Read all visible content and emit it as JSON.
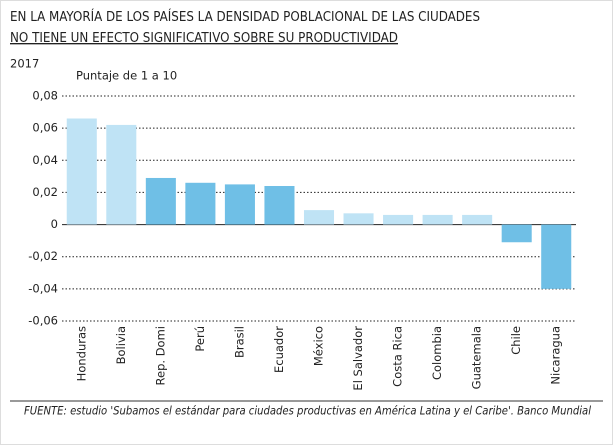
{
  "chart_data": {
    "type": "bar",
    "title": [
      "EN LA MAYORÍA DE LOS PAÍSES LA DENSIDAD POBLACIONAL DE LAS CIUDADES",
      "NO TIENE UN EFECTO SIGNIFICATIVO SOBRE SU PRODUCTIVIDAD"
    ],
    "subtitle": "2017",
    "y_label": "Puntaje de 1 a 10",
    "source": "FUENTE: estudio 'Subamos el estándar para ciudades productivas en América Latina y el Caribe'. Banco Mundial",
    "categories": [
      "Honduras",
      "Bolivia",
      "Rep. Domi",
      "Perú",
      "Brasil",
      "Ecuador",
      "México",
      "El Salvador",
      "Costa Rica",
      "Colombia",
      "Guatemala",
      "Chile",
      "Nicaragua"
    ],
    "values": [
      0.066,
      0.062,
      0.029,
      0.026,
      0.025,
      0.024,
      0.009,
      0.007,
      0.006,
      0.006,
      0.006,
      -0.011,
      -0.04
    ],
    "colors": [
      "#bfe3f5",
      "#bfe3f5",
      "#6fbfe6",
      "#6fbfe6",
      "#6fbfe6",
      "#6fbfe6",
      "#bfe3f5",
      "#bfe3f5",
      "#bfe3f5",
      "#bfe3f5",
      "#bfe3f5",
      "#6fbfe6",
      "#6fbfe6"
    ],
    "ylim": [
      -0.06,
      0.08
    ],
    "yticks": [
      {
        "value": 0.08,
        "label": "0,08"
      },
      {
        "value": 0.06,
        "label": "0,06"
      },
      {
        "value": 0.04,
        "label": "0,04"
      },
      {
        "value": 0.02,
        "label": "0,02"
      },
      0,
      {
        "value": -0.02,
        "label": "-0,02"
      },
      {
        "value": -0.04,
        "label": "-0,04"
      },
      {
        "value": -0.06,
        "label": "-0,06"
      }
    ],
    "grid": true
  }
}
